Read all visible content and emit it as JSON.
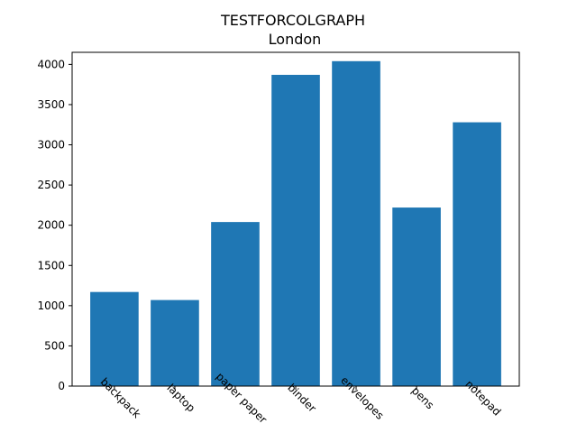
{
  "chart_data": {
    "type": "bar",
    "title": "TESTFORCOLGRAPH",
    "subtitle": "London",
    "xlabel": "",
    "ylabel": "",
    "categories": [
      "backpack",
      "laptop",
      "paper paper",
      "binder",
      "envelopes",
      "pens",
      "notepad"
    ],
    "values": [
      1170,
      1070,
      2040,
      3870,
      4040,
      2220,
      3280
    ],
    "ylim": [
      0,
      4150
    ],
    "yticks": [
      0,
      500,
      1000,
      1500,
      2000,
      2500,
      3000,
      3500,
      4000
    ],
    "grid": false,
    "legend": "none",
    "bar_color": "#1f77b4"
  }
}
